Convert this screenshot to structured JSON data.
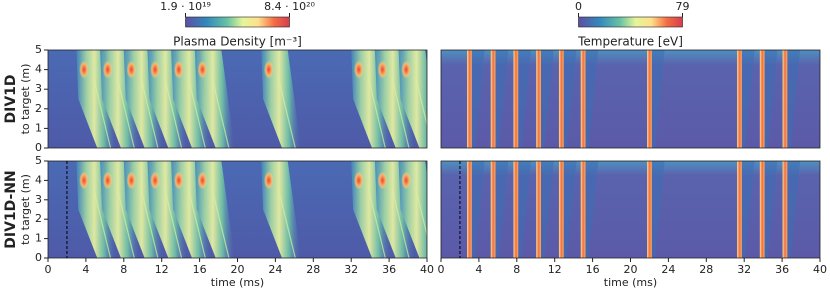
{
  "chart_data": [
    {
      "type": "heatmap",
      "title": "Plasma Density [m⁻³]",
      "row_label": "DIV1D",
      "ylabel": "to target (m)",
      "xlim": [
        0,
        40
      ],
      "ylim": [
        0,
        5
      ],
      "yticks": [
        0,
        1,
        2,
        3,
        4,
        5
      ],
      "x": [
        3.6,
        6.1,
        8.6,
        11.1,
        13.6,
        16.1,
        23.1,
        32.6,
        35.1,
        37.6
      ],
      "colorbar": {
        "ticks": [
          {
            "value": 1.9e+19,
            "label": "1.9 · 10¹⁹"
          },
          {
            "value": 8.4e+20,
            "label": "8.4 · 10²⁰"
          }
        ]
      }
    },
    {
      "type": "heatmap",
      "title": "Temperature [eV]",
      "xlim": [
        0,
        40
      ],
      "ylim": [
        0,
        5
      ],
      "x": [
        3.0,
        5.5,
        7.9,
        10.3,
        12.7,
        15.0,
        22.0,
        31.5,
        33.9,
        36.3
      ],
      "colorbar": {
        "ticks": [
          0,
          79
        ]
      }
    },
    {
      "type": "heatmap",
      "row_label": "DIV1D-NN",
      "ylabel": "to target (m)",
      "xlabel": "time (ms)",
      "xlim": [
        0,
        40
      ],
      "ylim": [
        0,
        5
      ],
      "yticks": [
        0,
        1,
        2,
        3,
        4,
        5
      ],
      "xticks": [
        0,
        4,
        8,
        12,
        16,
        20,
        24,
        28,
        32,
        36,
        40
      ],
      "marker_x": 2,
      "x": [
        3.6,
        6.1,
        8.6,
        11.1,
        13.6,
        16.1,
        23.1,
        32.6,
        35.1,
        37.6
      ]
    },
    {
      "type": "heatmap",
      "xlabel": "time (ms)",
      "xlim": [
        0,
        40
      ],
      "ylim": [
        0,
        5
      ],
      "xticks": [
        0,
        4,
        8,
        12,
        16,
        20,
        24,
        28,
        32,
        36,
        40
      ],
      "marker_x": 2,
      "x": [
        3.0,
        5.5,
        7.9,
        10.3,
        12.7,
        15.0,
        22.0,
        31.5,
        33.9,
        36.3
      ]
    }
  ]
}
